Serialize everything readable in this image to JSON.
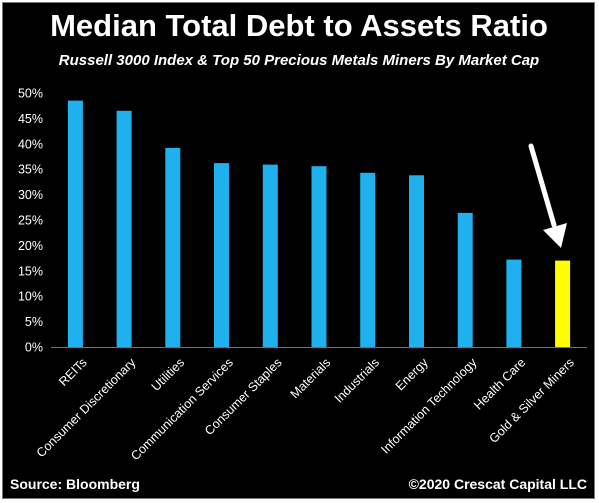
{
  "chart_data": {
    "type": "bar",
    "title": "Median Total Debt to Assets Ratio",
    "subtitle": "Russell 3000 Index & Top 50 Precious Metals Miners By Market Cap",
    "xlabel": "",
    "ylabel": "",
    "categories": [
      "REITs",
      "Consumer Discretionary",
      "Utilities",
      "Communication Services",
      "Consumer Staples",
      "Materials",
      "Industrials",
      "Energy",
      "Information Technology",
      "Health Care",
      "Gold & Silver Miners"
    ],
    "values": [
      48.5,
      46.5,
      39.2,
      36.2,
      35.9,
      35.6,
      34.3,
      33.8,
      26.4,
      17.2,
      17.0
    ],
    "highlight_index": 10,
    "ylim": [
      0,
      50
    ],
    "yticks": [
      "0%",
      "5%",
      "10%",
      "15%",
      "20%",
      "25%",
      "30%",
      "35%",
      "40%",
      "45%",
      "50%"
    ],
    "grid": false,
    "annotation": "arrow pointing to Gold & Silver Miners",
    "colors": {
      "background": "#000000",
      "bar": "#1fb0ee",
      "highlight_bar": "#ffff00",
      "text": "#ffffff",
      "arrow": "#ffffff"
    }
  },
  "footer": {
    "source": "Source: Bloomberg",
    "copyright": "©2020 Crescat Capital LLC"
  }
}
